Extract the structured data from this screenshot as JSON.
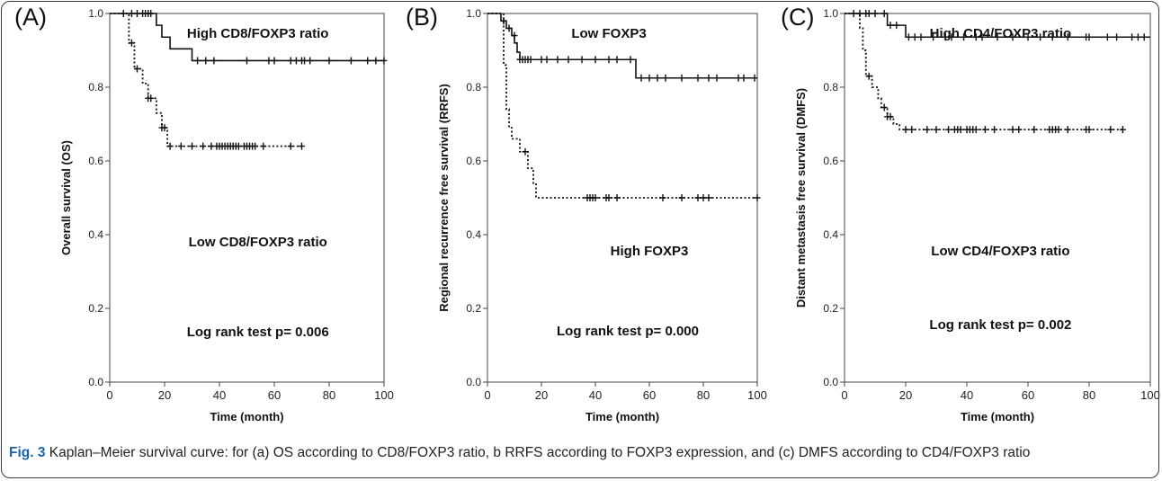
{
  "figure": {
    "caption_label": "Fig. 3",
    "caption_text": " Kaplan–Meier survival curve: for (a) OS according to CD8/FOXP3 ratio, b RRFS according to FOXP3 expression, and (c) DMFS according to CD4/FOXP3 ratio"
  },
  "chart_data": [
    {
      "type": "line",
      "panel_label": "(A)",
      "xlabel": "Time (month)",
      "ylabel": "Overall survival (OS)",
      "xlim": [
        0,
        100
      ],
      "ylim": [
        0,
        1.0
      ],
      "xticks": [
        "0",
        "20",
        "40",
        "60",
        "80",
        "100"
      ],
      "yticks": [
        "0.0",
        "0.2",
        "0.4",
        "0.6",
        "0.8",
        "1.0"
      ],
      "grid": false,
      "annotations": [
        "High CD8/FOXP3 ratio",
        "Low CD8/FOXP3 ratio",
        "Log rank test p= 0.006"
      ],
      "series": [
        {
          "style": "solid",
          "steps": [
            [
              0,
              1.0
            ],
            [
              17,
              0.968
            ],
            [
              19,
              0.936
            ],
            [
              22,
              0.904
            ],
            [
              30,
              0.872
            ],
            [
              100,
              0.872
            ]
          ],
          "censored": [
            [
              5,
              1.0
            ],
            [
              8,
              1.0
            ],
            [
              10,
              1.0
            ],
            [
              12,
              1.0
            ],
            [
              13,
              1.0
            ],
            [
              14,
              1.0
            ],
            [
              15,
              1.0
            ],
            [
              32,
              0.872
            ],
            [
              35,
              0.872
            ],
            [
              38,
              0.872
            ],
            [
              50,
              0.872
            ],
            [
              58,
              0.872
            ],
            [
              60,
              0.872
            ],
            [
              66,
              0.872
            ],
            [
              68,
              0.872
            ],
            [
              70,
              0.872
            ],
            [
              71,
              0.872
            ],
            [
              73,
              0.872
            ],
            [
              80,
              0.872
            ],
            [
              88,
              0.872
            ],
            [
              94,
              0.872
            ],
            [
              97,
              0.872
            ],
            [
              100,
              0.872
            ]
          ]
        },
        {
          "style": "dotted",
          "steps": [
            [
              0,
              1.0
            ],
            [
              7,
              0.92
            ],
            [
              9,
              0.85
            ],
            [
              12,
              0.81
            ],
            [
              14,
              0.77
            ],
            [
              17,
              0.73
            ],
            [
              19,
              0.69
            ],
            [
              21,
              0.64
            ],
            [
              70,
              0.64
            ]
          ],
          "censored": [
            [
              8,
              0.92
            ],
            [
              10,
              0.85
            ],
            [
              14,
              0.77
            ],
            [
              15,
              0.77
            ],
            [
              19,
              0.69
            ],
            [
              20,
              0.69
            ],
            [
              22,
              0.64
            ],
            [
              26,
              0.64
            ],
            [
              30,
              0.64
            ],
            [
              34,
              0.64
            ],
            [
              37,
              0.64
            ],
            [
              39,
              0.64
            ],
            [
              40,
              0.64
            ],
            [
              41,
              0.64
            ],
            [
              42,
              0.64
            ],
            [
              43,
              0.64
            ],
            [
              44,
              0.64
            ],
            [
              45,
              0.64
            ],
            [
              46,
              0.64
            ],
            [
              47,
              0.64
            ],
            [
              49,
              0.64
            ],
            [
              50,
              0.64
            ],
            [
              51,
              0.64
            ],
            [
              52,
              0.64
            ],
            [
              53,
              0.64
            ],
            [
              56,
              0.64
            ],
            [
              66,
              0.64
            ],
            [
              70,
              0.64
            ]
          ]
        }
      ]
    },
    {
      "type": "line",
      "panel_label": "(B)",
      "xlabel": "Time (month)",
      "ylabel": "Regional recurrence free survival (RRFS)",
      "xlim": [
        0,
        100
      ],
      "ylim": [
        0,
        1.0
      ],
      "xticks": [
        "0",
        "20",
        "40",
        "60",
        "80",
        "100"
      ],
      "yticks": [
        "0.0",
        "0.2",
        "0.4",
        "0.6",
        "0.8",
        "1.0"
      ],
      "grid": false,
      "annotations": [
        "Low FOXP3",
        "High FOXP3",
        "Log rank test p= 0.000"
      ],
      "series": [
        {
          "style": "solid",
          "steps": [
            [
              0,
              1.0
            ],
            [
              5,
              0.98
            ],
            [
              7,
              0.96
            ],
            [
              9,
              0.94
            ],
            [
              10,
              0.92
            ],
            [
              11,
              0.895
            ],
            [
              12,
              0.875
            ],
            [
              55,
              0.825
            ],
            [
              100,
              0.825
            ]
          ],
          "censored": [
            [
              6,
              0.98
            ],
            [
              8,
              0.96
            ],
            [
              10,
              0.94
            ],
            [
              12,
              0.875
            ],
            [
              13,
              0.875
            ],
            [
              14,
              0.875
            ],
            [
              15,
              0.875
            ],
            [
              16,
              0.875
            ],
            [
              20,
              0.875
            ],
            [
              22,
              0.875
            ],
            [
              26,
              0.875
            ],
            [
              30,
              0.875
            ],
            [
              35,
              0.875
            ],
            [
              40,
              0.875
            ],
            [
              45,
              0.875
            ],
            [
              48,
              0.875
            ],
            [
              53,
              0.875
            ],
            [
              57,
              0.825
            ],
            [
              60,
              0.825
            ],
            [
              63,
              0.825
            ],
            [
              66,
              0.825
            ],
            [
              72,
              0.825
            ],
            [
              78,
              0.825
            ],
            [
              82,
              0.825
            ],
            [
              85,
              0.825
            ],
            [
              93,
              0.825
            ],
            [
              95,
              0.825
            ],
            [
              99,
              0.825
            ]
          ]
        },
        {
          "style": "dotted",
          "steps": [
            [
              0,
              1.0
            ],
            [
              6,
              0.86
            ],
            [
              7,
              0.74
            ],
            [
              8,
              0.69
            ],
            [
              9,
              0.66
            ],
            [
              12,
              0.625
            ],
            [
              15,
              0.58
            ],
            [
              17,
              0.54
            ],
            [
              18,
              0.5
            ],
            [
              100,
              0.5
            ]
          ],
          "censored": [
            [
              14,
              0.625
            ],
            [
              37,
              0.5
            ],
            [
              38,
              0.5
            ],
            [
              39,
              0.5
            ],
            [
              40,
              0.5
            ],
            [
              44,
              0.5
            ],
            [
              45,
              0.5
            ],
            [
              48,
              0.5
            ],
            [
              65,
              0.5
            ],
            [
              72,
              0.5
            ],
            [
              78,
              0.5
            ],
            [
              80,
              0.5
            ],
            [
              82,
              0.5
            ],
            [
              100,
              0.5
            ]
          ]
        }
      ]
    },
    {
      "type": "line",
      "panel_label": "(C)",
      "xlabel": "Time (month)",
      "ylabel": "Distant metastasis free survival (DMFS)",
      "xlim": [
        0,
        100
      ],
      "ylim": [
        0,
        1.0
      ],
      "xticks": [
        "0",
        "20",
        "40",
        "60",
        "80",
        "100"
      ],
      "yticks": [
        "0.0",
        "0.2",
        "0.4",
        "0.6",
        "0.8",
        "1.0"
      ],
      "grid": false,
      "annotations": [
        "High CD4/FOXP3  ratio",
        "Low CD4/FOXP3  ratio",
        "Log rank test p= 0.002"
      ],
      "series": [
        {
          "style": "solid",
          "steps": [
            [
              0,
              1.0
            ],
            [
              14,
              0.968
            ],
            [
              20,
              0.936
            ],
            [
              100,
              0.936
            ]
          ],
          "censored": [
            [
              3,
              1.0
            ],
            [
              5,
              1.0
            ],
            [
              7,
              1.0
            ],
            [
              8,
              1.0
            ],
            [
              10,
              1.0
            ],
            [
              13,
              1.0
            ],
            [
              15,
              0.968
            ],
            [
              17,
              0.968
            ],
            [
              21,
              0.936
            ],
            [
              23,
              0.936
            ],
            [
              25,
              0.936
            ],
            [
              29,
              0.936
            ],
            [
              33,
              0.936
            ],
            [
              35,
              0.936
            ],
            [
              39,
              0.936
            ],
            [
              43,
              0.936
            ],
            [
              45,
              0.936
            ],
            [
              50,
              0.936
            ],
            [
              55,
              0.936
            ],
            [
              60,
              0.936
            ],
            [
              64,
              0.936
            ],
            [
              68,
              0.936
            ],
            [
              73,
              0.936
            ],
            [
              79,
              0.936
            ],
            [
              80,
              0.936
            ],
            [
              86,
              0.936
            ],
            [
              89,
              0.936
            ],
            [
              94,
              0.936
            ],
            [
              96,
              0.936
            ],
            [
              98,
              0.936
            ]
          ]
        },
        {
          "style": "dotted",
          "steps": [
            [
              0,
              1.0
            ],
            [
              5,
              0.96
            ],
            [
              6,
              0.9
            ],
            [
              7,
              0.83
            ],
            [
              9,
              0.8
            ],
            [
              11,
              0.77
            ],
            [
              12,
              0.745
            ],
            [
              14,
              0.72
            ],
            [
              16,
              0.7
            ],
            [
              18,
              0.685
            ],
            [
              91,
              0.685
            ]
          ],
          "censored": [
            [
              8,
              0.83
            ],
            [
              13,
              0.745
            ],
            [
              14,
              0.72
            ],
            [
              15,
              0.72
            ],
            [
              20,
              0.685
            ],
            [
              22,
              0.685
            ],
            [
              27,
              0.685
            ],
            [
              30,
              0.685
            ],
            [
              34,
              0.685
            ],
            [
              36,
              0.685
            ],
            [
              37,
              0.685
            ],
            [
              38,
              0.685
            ],
            [
              40,
              0.685
            ],
            [
              41,
              0.685
            ],
            [
              42,
              0.685
            ],
            [
              43,
              0.685
            ],
            [
              46,
              0.685
            ],
            [
              49,
              0.685
            ],
            [
              55,
              0.685
            ],
            [
              57,
              0.685
            ],
            [
              62,
              0.685
            ],
            [
              67,
              0.685
            ],
            [
              68,
              0.685
            ],
            [
              69,
              0.685
            ],
            [
              70,
              0.685
            ],
            [
              73,
              0.685
            ],
            [
              79,
              0.685
            ],
            [
              80,
              0.685
            ],
            [
              87,
              0.685
            ],
            [
              91,
              0.685
            ]
          ]
        }
      ]
    }
  ]
}
